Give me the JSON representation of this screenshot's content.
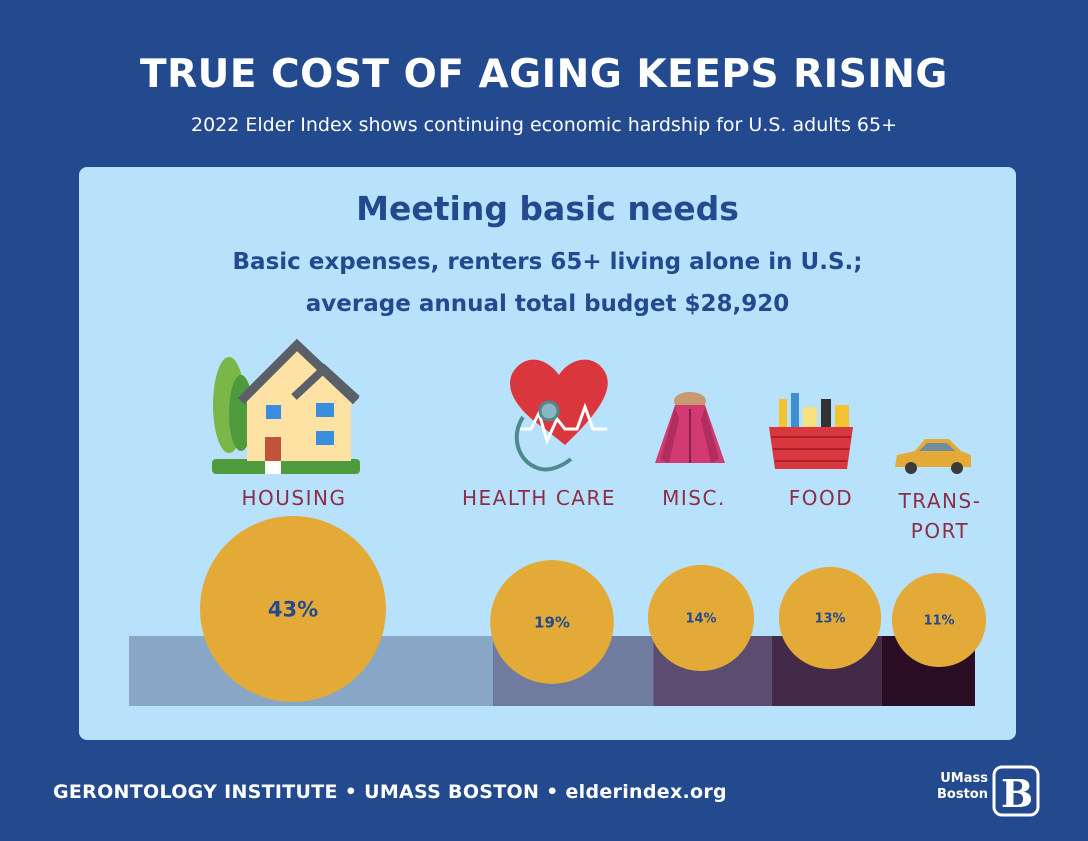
{
  "header": {
    "title": "TRUE COST OF AGING KEEPS RISING",
    "subtitle": "2022 Elder Index shows continuing economic hardship for U.S. adults 65+"
  },
  "panel": {
    "title": "Meeting basic needs",
    "subtitle_line1": "Basic expenses, renters 65+ living alone in U.S.;",
    "subtitle_line2": "average annual total budget $28,920"
  },
  "chart_data": {
    "type": "bar",
    "categories": [
      "HOUSING",
      "HEALTH CARE",
      "MISC.",
      "FOOD",
      "TRANS-PORT"
    ],
    "category_label_lines": [
      [
        "HOUSING"
      ],
      [
        "HEALTH CARE"
      ],
      [
        "MISC."
      ],
      [
        "FOOD"
      ],
      [
        "TRANS-",
        "PORT"
      ]
    ],
    "values": [
      43,
      19,
      14,
      13,
      11
    ],
    "value_labels": [
      "43%",
      "19%",
      "14%",
      "13%",
      "11%"
    ],
    "icons": [
      "house-icon",
      "heart-stethoscope-icon",
      "winter-coat-icon",
      "grocery-basket-icon",
      "car-icon"
    ],
    "segment_colors": [
      "#88a6c6",
      "#707ba0",
      "#5b4c70",
      "#432a48",
      "#2a0d24"
    ],
    "bubble_color": "#e3aa38",
    "label_color": "#8c2f46"
  },
  "footer": {
    "text": "GERONTOLOGY INSTITUTE  • UMASS BOSTON  •  elderindex.org"
  },
  "logo": {
    "line1": "UMass",
    "line2": "Boston",
    "mark": "B"
  }
}
